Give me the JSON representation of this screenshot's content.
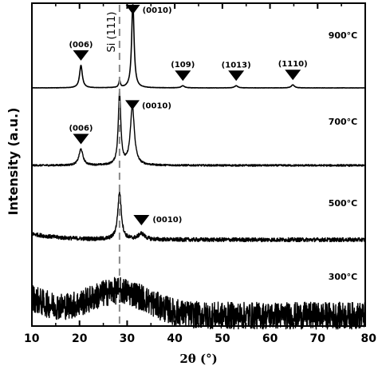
{
  "chart_data": {
    "type": "line",
    "xlabel": "2θ (°)",
    "ylabel": "Intensity (a.u.)",
    "xlim": [
      10,
      80
    ],
    "x_ticks": [
      10,
      20,
      30,
      40,
      50,
      60,
      70,
      80
    ],
    "grid": false,
    "reference_line": {
      "x": 28.4,
      "label": "Si (111)",
      "style": "dashed",
      "color": "#888888"
    },
    "series": [
      {
        "name": "900°C",
        "baseline": 0.04,
        "noise": 0.0015,
        "peaks": [
          {
            "x": 20.3,
            "height": 0.26,
            "width": 0.35
          },
          {
            "x": 28.4,
            "height": 0.08,
            "width": 0.2
          },
          {
            "x": 31.2,
            "height": 1.0,
            "width": 0.3
          },
          {
            "x": 41.7,
            "height": 0.025,
            "width": 0.4
          },
          {
            "x": 52.9,
            "height": 0.025,
            "width": 0.4
          },
          {
            "x": 64.8,
            "height": 0.035,
            "width": 0.4
          }
        ],
        "annotations": [
          {
            "label": "(006)",
            "x": 20.3
          },
          {
            "label": "(0010)",
            "x": 31.2
          },
          {
            "label": "(109)",
            "x": 41.7
          },
          {
            "label": "(1013)",
            "x": 52.9
          },
          {
            "label": "(1110)",
            "x": 64.8
          }
        ]
      },
      {
        "name": "700°C",
        "baseline": 0.06,
        "noise": 0.012,
        "peaks": [
          {
            "x": 20.3,
            "height": 0.22,
            "width": 0.5
          },
          {
            "x": 28.4,
            "height": 0.98,
            "width": 0.32
          },
          {
            "x": 31.1,
            "height": 0.8,
            "width": 0.5
          }
        ],
        "annotations": [
          {
            "label": "(006)",
            "x": 20.3
          },
          {
            "label": "(0010)",
            "x": 31.1
          }
        ]
      },
      {
        "name": "500°C",
        "baseline": 0.14,
        "noise": 0.04,
        "peaks": [
          {
            "x": 28.4,
            "height": 0.95,
            "width": 0.45
          },
          {
            "x": 33.0,
            "height": 0.12,
            "width": 0.8
          }
        ],
        "annotations": [
          {
            "label": "(0010)",
            "x": 33.0
          }
        ]
      },
      {
        "name": "300°C",
        "baseline": 0.25,
        "noise": 0.14,
        "broad_hump": {
          "x": 28.4,
          "height": 0.35,
          "width": 6
        },
        "peaks": [],
        "annotations": []
      }
    ]
  }
}
